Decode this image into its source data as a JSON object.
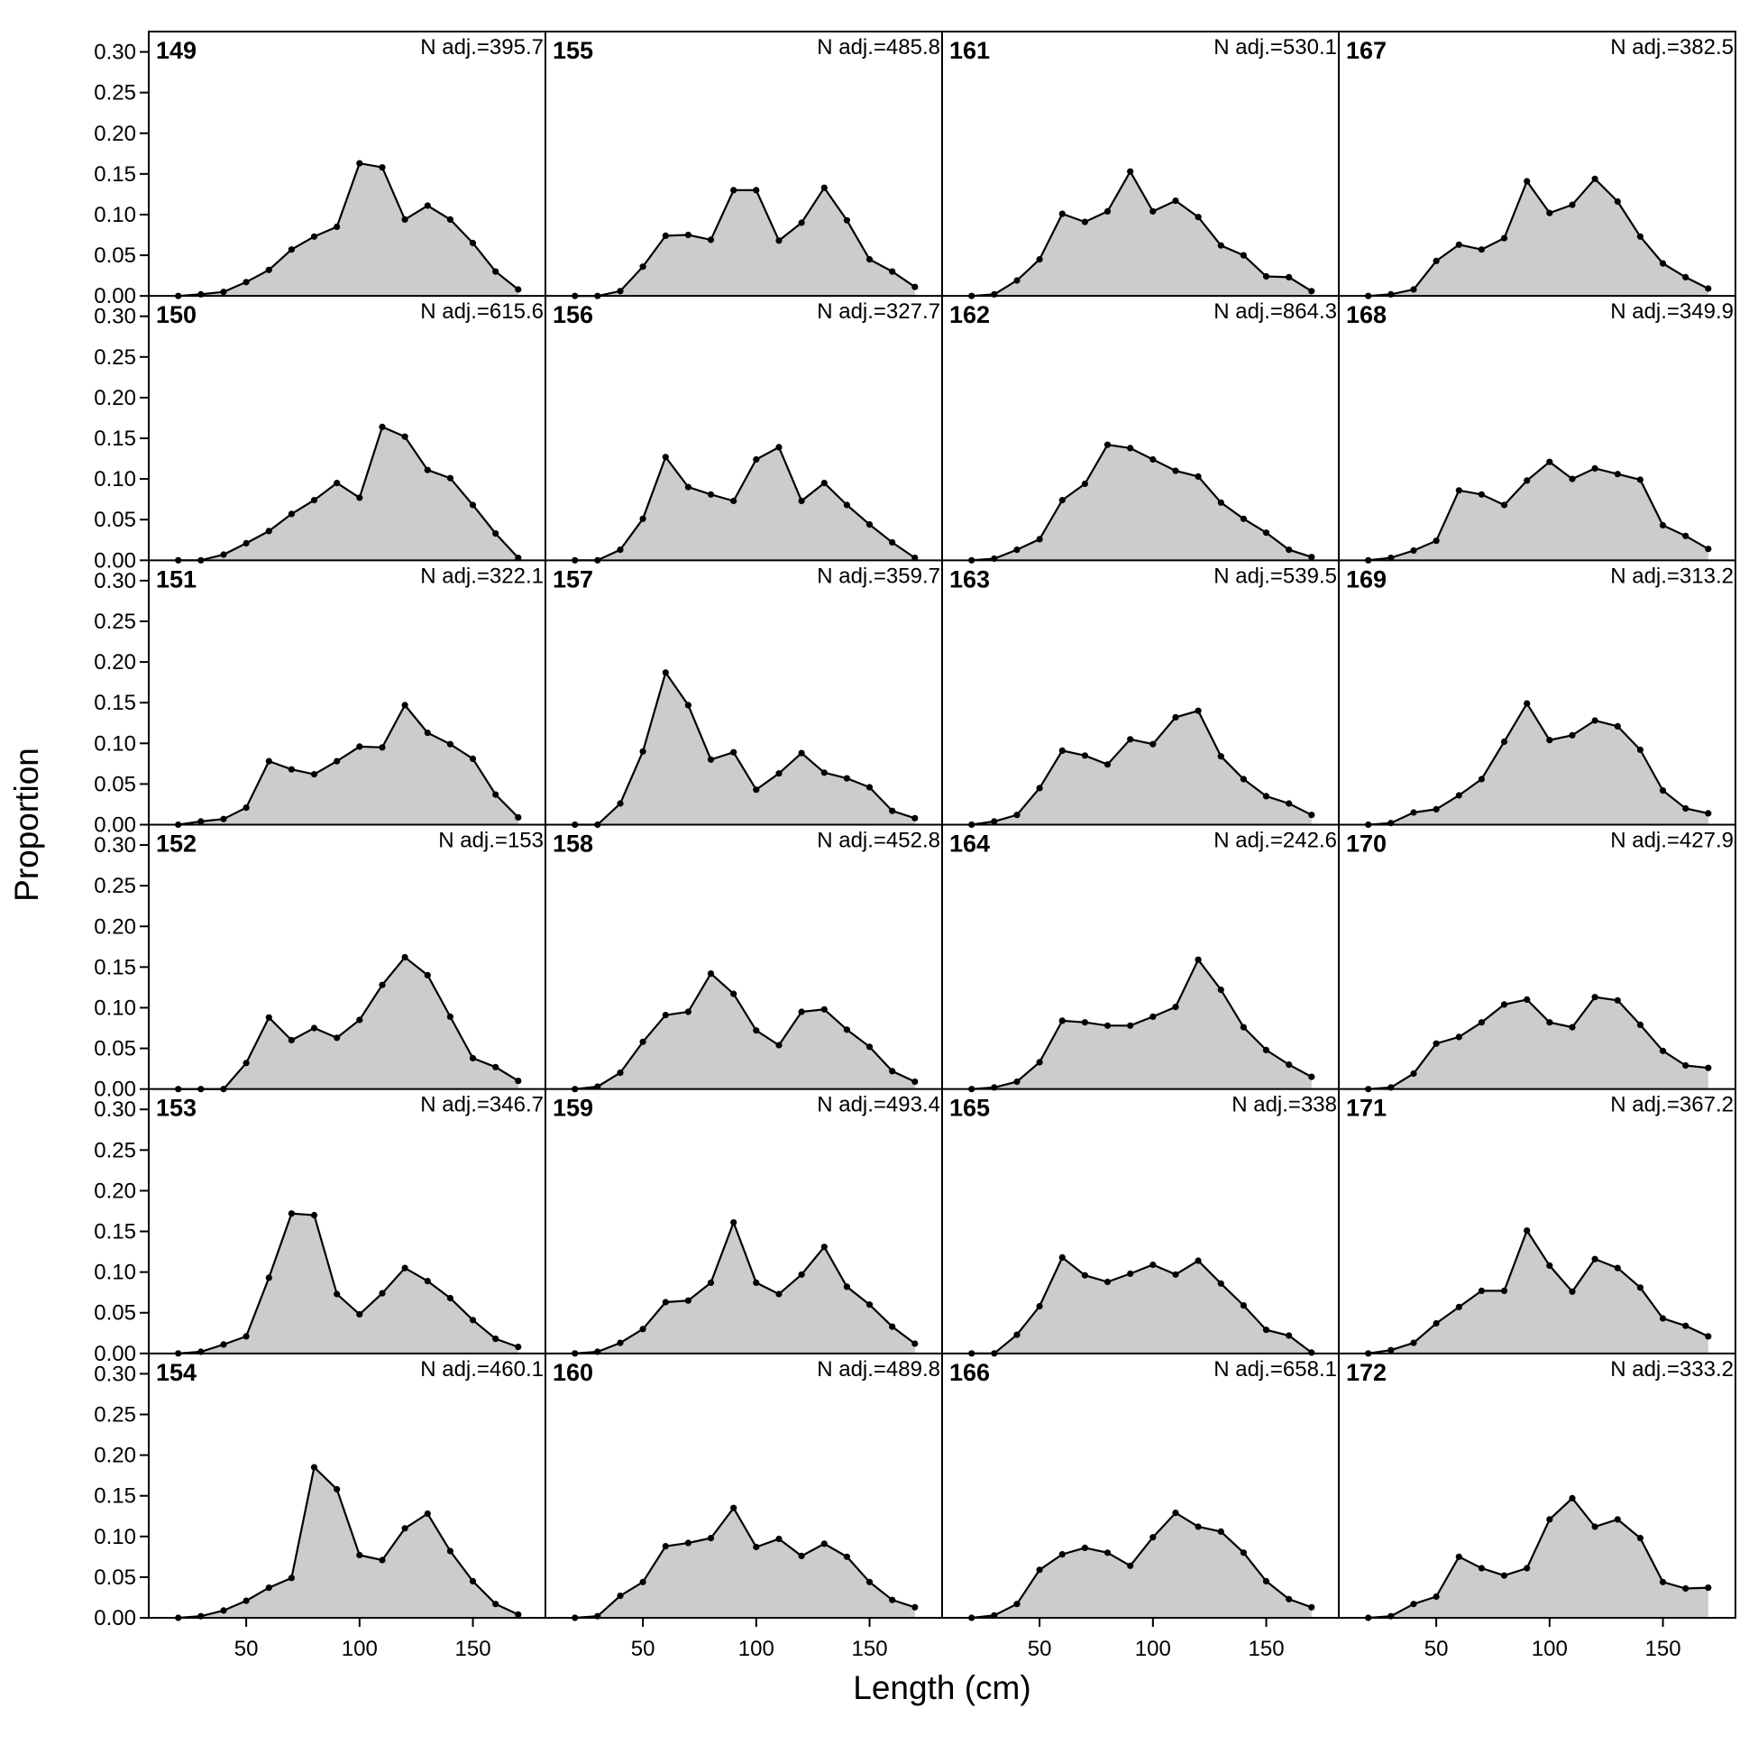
{
  "chart_data": {
    "type": "area",
    "xlabel": "Length (cm)",
    "ylabel": "Proportion",
    "xlim": [
      7,
      182
    ],
    "ylim": [
      0,
      0.325
    ],
    "x_ticks": [
      50,
      100,
      150
    ],
    "y_ticks": [
      "0.00",
      "0.05",
      "0.10",
      "0.15",
      "0.20",
      "0.25",
      "0.30"
    ],
    "colors": {
      "fill": "#cccccc",
      "line": "#000000",
      "frame": "#000000"
    },
    "x": [
      20,
      30,
      40,
      50,
      60,
      70,
      80,
      90,
      100,
      110,
      120,
      130,
      140,
      150,
      160,
      170
    ],
    "panels": [
      {
        "label": "149",
        "n_adj": "N adj.=395.7",
        "values": [
          0.0,
          0.002,
          0.005,
          0.017,
          0.032,
          0.057,
          0.073,
          0.085,
          0.163,
          0.158,
          0.094,
          0.111,
          0.094,
          0.065,
          0.03,
          0.008
        ]
      },
      {
        "label": "150",
        "n_adj": "N adj.=615.6",
        "values": [
          0.0,
          0.0,
          0.007,
          0.021,
          0.036,
          0.057,
          0.074,
          0.095,
          0.077,
          0.164,
          0.152,
          0.111,
          0.101,
          0.068,
          0.033,
          0.003
        ]
      },
      {
        "label": "151",
        "n_adj": "N adj.=322.1",
        "values": [
          0.0,
          0.004,
          0.007,
          0.021,
          0.078,
          0.068,
          0.062,
          0.078,
          0.096,
          0.095,
          0.147,
          0.113,
          0.099,
          0.081,
          0.037,
          0.009
        ]
      },
      {
        "label": "152",
        "n_adj": "N adj.=153",
        "values": [
          0.0,
          0.0,
          0.0,
          0.032,
          0.088,
          0.06,
          0.075,
          0.063,
          0.085,
          0.128,
          0.162,
          0.14,
          0.089,
          0.038,
          0.027,
          0.01
        ]
      },
      {
        "label": "153",
        "n_adj": "N adj.=346.7",
        "values": [
          0.0,
          0.002,
          0.011,
          0.021,
          0.093,
          0.172,
          0.17,
          0.073,
          0.048,
          0.074,
          0.105,
          0.089,
          0.068,
          0.041,
          0.018,
          0.008
        ]
      },
      {
        "label": "154",
        "n_adj": "N adj.=460.1",
        "values": [
          0.0,
          0.002,
          0.009,
          0.021,
          0.037,
          0.049,
          0.185,
          0.158,
          0.077,
          0.071,
          0.11,
          0.128,
          0.082,
          0.045,
          0.017,
          0.004
        ]
      },
      {
        "label": "155",
        "n_adj": "N adj.=485.8",
        "values": [
          0.0,
          0.0,
          0.006,
          0.036,
          0.074,
          0.075,
          0.069,
          0.13,
          0.13,
          0.068,
          0.09,
          0.133,
          0.093,
          0.045,
          0.03,
          0.011
        ]
      },
      {
        "label": "156",
        "n_adj": "N adj.=327.7",
        "values": [
          0.0,
          0.0,
          0.013,
          0.051,
          0.127,
          0.09,
          0.081,
          0.073,
          0.124,
          0.139,
          0.073,
          0.095,
          0.068,
          0.044,
          0.022,
          0.003
        ]
      },
      {
        "label": "157",
        "n_adj": "N adj.=359.7",
        "values": [
          0.0,
          0.0,
          0.026,
          0.09,
          0.187,
          0.147,
          0.08,
          0.089,
          0.043,
          0.063,
          0.088,
          0.064,
          0.057,
          0.046,
          0.017,
          0.008
        ]
      },
      {
        "label": "158",
        "n_adj": "N adj.=452.8",
        "values": [
          0.0,
          0.003,
          0.02,
          0.058,
          0.091,
          0.095,
          0.142,
          0.117,
          0.072,
          0.054,
          0.095,
          0.098,
          0.073,
          0.052,
          0.022,
          0.009
        ]
      },
      {
        "label": "159",
        "n_adj": "N adj.=493.4",
        "values": [
          0.0,
          0.002,
          0.013,
          0.03,
          0.063,
          0.065,
          0.087,
          0.161,
          0.087,
          0.073,
          0.097,
          0.131,
          0.082,
          0.06,
          0.033,
          0.012
        ]
      },
      {
        "label": "160",
        "n_adj": "N adj.=489.8",
        "values": [
          0.0,
          0.002,
          0.027,
          0.044,
          0.088,
          0.092,
          0.098,
          0.135,
          0.087,
          0.097,
          0.076,
          0.091,
          0.075,
          0.044,
          0.022,
          0.013
        ]
      },
      {
        "label": "161",
        "n_adj": "N adj.=530.1",
        "values": [
          0.0,
          0.002,
          0.019,
          0.045,
          0.101,
          0.091,
          0.104,
          0.153,
          0.104,
          0.117,
          0.097,
          0.062,
          0.05,
          0.024,
          0.023,
          0.006
        ]
      },
      {
        "label": "162",
        "n_adj": "N adj.=864.3",
        "values": [
          0.0,
          0.002,
          0.013,
          0.026,
          0.074,
          0.094,
          0.142,
          0.138,
          0.124,
          0.11,
          0.103,
          0.071,
          0.051,
          0.034,
          0.013,
          0.004
        ]
      },
      {
        "label": "163",
        "n_adj": "N adj.=539.5",
        "values": [
          0.0,
          0.004,
          0.012,
          0.045,
          0.091,
          0.085,
          0.074,
          0.105,
          0.099,
          0.132,
          0.14,
          0.084,
          0.056,
          0.035,
          0.026,
          0.012
        ]
      },
      {
        "label": "164",
        "n_adj": "N adj.=242.6",
        "values": [
          0.0,
          0.002,
          0.009,
          0.033,
          0.084,
          0.082,
          0.078,
          0.078,
          0.089,
          0.101,
          0.159,
          0.122,
          0.076,
          0.048,
          0.03,
          0.015
        ]
      },
      {
        "label": "165",
        "n_adj": "N adj.=338",
        "values": [
          0.0,
          0.0,
          0.023,
          0.058,
          0.118,
          0.096,
          0.088,
          0.098,
          0.109,
          0.097,
          0.114,
          0.086,
          0.059,
          0.029,
          0.022,
          0.001
        ]
      },
      {
        "label": "166",
        "n_adj": "N adj.=658.1",
        "values": [
          0.0,
          0.003,
          0.017,
          0.059,
          0.078,
          0.086,
          0.08,
          0.064,
          0.099,
          0.129,
          0.112,
          0.106,
          0.08,
          0.045,
          0.023,
          0.013
        ]
      },
      {
        "label": "167",
        "n_adj": "N adj.=382.5",
        "values": [
          0.0,
          0.002,
          0.008,
          0.043,
          0.063,
          0.057,
          0.071,
          0.141,
          0.102,
          0.112,
          0.144,
          0.116,
          0.073,
          0.04,
          0.023,
          0.009
        ]
      },
      {
        "label": "168",
        "n_adj": "N adj.=349.9",
        "values": [
          0.0,
          0.003,
          0.012,
          0.024,
          0.086,
          0.081,
          0.068,
          0.098,
          0.121,
          0.1,
          0.113,
          0.106,
          0.099,
          0.043,
          0.03,
          0.014
        ]
      },
      {
        "label": "169",
        "n_adj": "N adj.=313.2",
        "values": [
          0.0,
          0.002,
          0.015,
          0.019,
          0.036,
          0.056,
          0.102,
          0.149,
          0.104,
          0.11,
          0.128,
          0.121,
          0.092,
          0.042,
          0.02,
          0.014
        ]
      },
      {
        "label": "170",
        "n_adj": "N adj.=427.9",
        "values": [
          0.0,
          0.002,
          0.019,
          0.056,
          0.064,
          0.082,
          0.104,
          0.11,
          0.082,
          0.076,
          0.113,
          0.109,
          0.079,
          0.047,
          0.029,
          0.026
        ]
      },
      {
        "label": "171",
        "n_adj": "N adj.=367.2",
        "values": [
          0.0,
          0.004,
          0.013,
          0.037,
          0.057,
          0.077,
          0.077,
          0.151,
          0.108,
          0.076,
          0.116,
          0.105,
          0.081,
          0.043,
          0.034,
          0.021
        ]
      },
      {
        "label": "172",
        "n_adj": "N adj.=333.2",
        "values": [
          0.0,
          0.002,
          0.017,
          0.026,
          0.075,
          0.061,
          0.052,
          0.061,
          0.121,
          0.147,
          0.112,
          0.121,
          0.098,
          0.044,
          0.036,
          0.037
        ]
      }
    ]
  }
}
